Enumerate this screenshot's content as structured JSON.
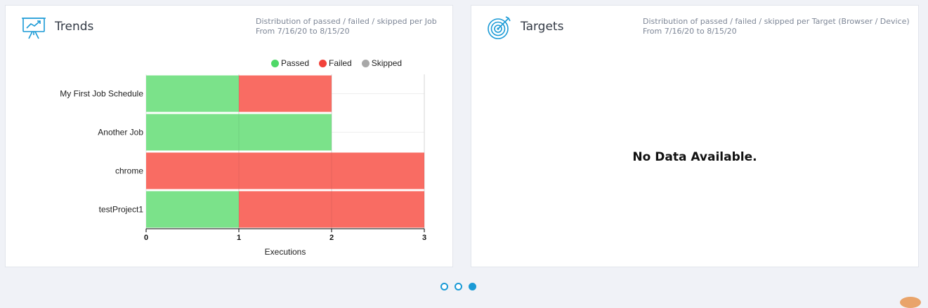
{
  "trends_card": {
    "title": "Trends",
    "desc_line1": "Distribution of passed / failed / skipped per Job",
    "desc_line2": "From 7/16/20 to 8/15/20"
  },
  "targets_card": {
    "title": "Targets",
    "desc_line1": "Distribution of passed / failed / skipped per Target (Browser / Device)",
    "desc_line2": "From 7/16/20 to 8/15/20",
    "empty_message": "No Data Available."
  },
  "icons": {
    "trends": "presentation-chart-icon",
    "targets": "target-dart-icon"
  },
  "colors": {
    "accent": "#1a9ad6",
    "passed": "#7be28a",
    "failed": "#f96c63",
    "skipped": "#a8a8a8"
  },
  "pagination": {
    "count": 3,
    "active_index": 2
  },
  "chart_data": {
    "type": "bar",
    "orientation": "horizontal",
    "stacked": true,
    "categories": [
      "My First Job Schedule",
      "Another Job",
      "chrome",
      "testProject1"
    ],
    "series": [
      {
        "name": "Passed",
        "values": [
          1,
          2,
          0,
          1
        ]
      },
      {
        "name": "Failed",
        "values": [
          1,
          0,
          3,
          2
        ]
      },
      {
        "name": "Skipped",
        "values": [
          0,
          0,
          0,
          0
        ]
      }
    ],
    "xlabel": "Executions",
    "ylabel": "",
    "xlim": [
      0,
      3
    ],
    "xticks": [
      "0",
      "1",
      "2",
      "3"
    ],
    "legend": "top-right",
    "grid": true
  }
}
